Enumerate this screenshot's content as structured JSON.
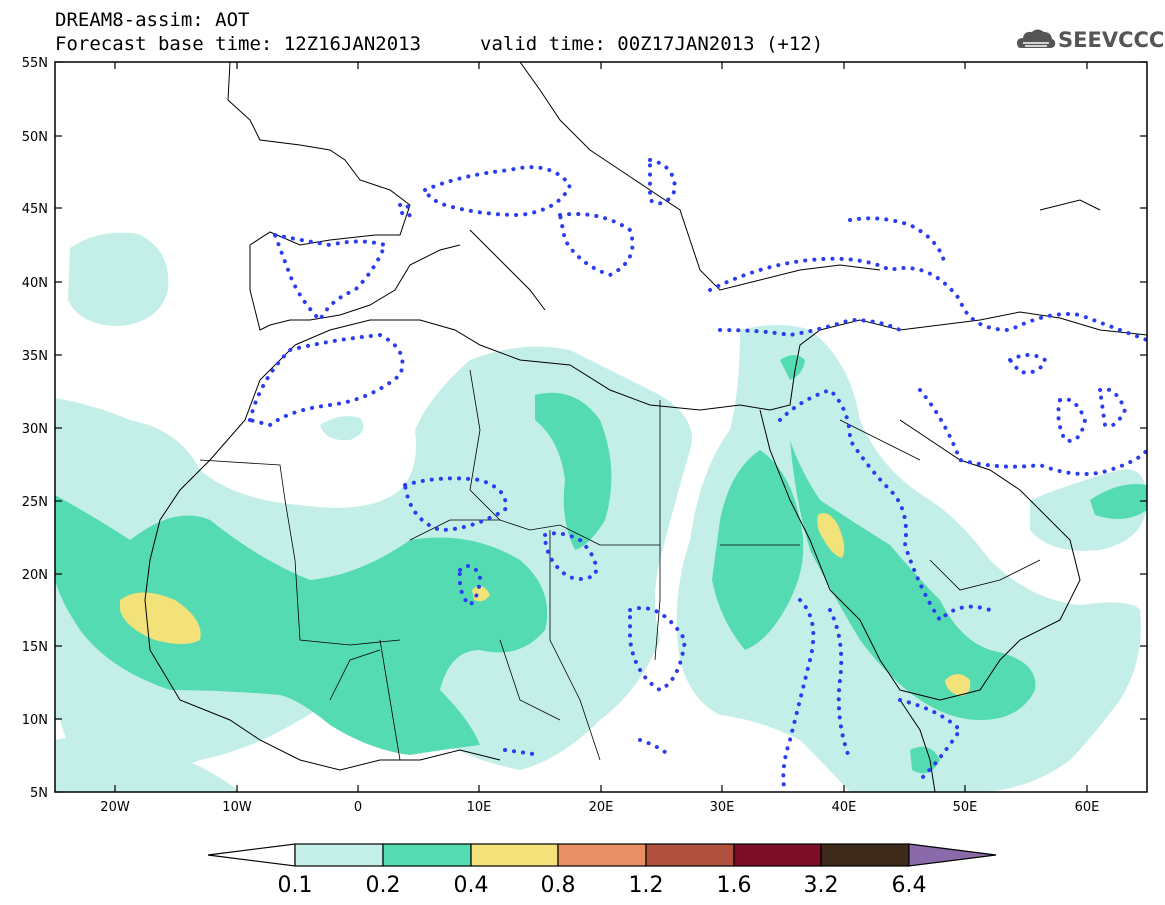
{
  "header": {
    "title": "DREAM8-assim: AOT",
    "base_time": "Forecast base time: 12Z16JAN2013",
    "valid_time": "valid time: 00Z17JAN2013 (+12)",
    "logo_text": "SEEVCCC"
  },
  "map": {
    "lat_labels": [
      "55N",
      "50N",
      "45N",
      "40N",
      "35N",
      "30N",
      "25N",
      "20N",
      "15N",
      "10N",
      "5N"
    ],
    "lon_labels": [
      "20W",
      "10W",
      "0",
      "10E",
      "20E",
      "30E",
      "40E",
      "50E",
      "60E"
    ]
  },
  "colorbar": {
    "labels": [
      "0.1",
      "0.2",
      "0.4",
      "0.8",
      "1.2",
      "1.6",
      "3.2",
      "6.4"
    ],
    "colors": [
      "#c4efe9",
      "#55dbb1",
      "#f3e27a",
      "#e98f66",
      "#b0503e",
      "#7c0e2a",
      "#3d2a1a",
      "#8a6aa8"
    ]
  },
  "colors": {
    "land": "#ffffff",
    "contour_dots": "#2b3df0",
    "aot_01": "#c4efe9",
    "aot_02": "#55dbb1",
    "aot_04": "#f3e27a"
  }
}
